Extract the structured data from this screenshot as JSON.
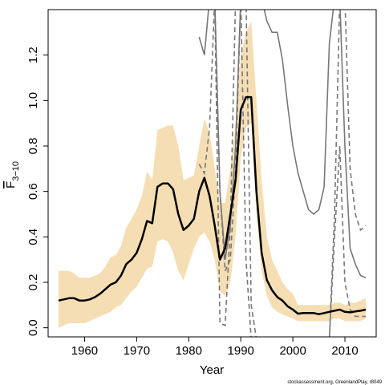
{
  "chart_data": {
    "type": "line",
    "xlabel": "Year",
    "ylabel_main": "F",
    "ylabel_sub": "3−10",
    "footer": "stockassessment.org, GreenlandPlay, r8049",
    "xlim": [
      1953,
      2016
    ],
    "ylim": [
      -0.04,
      1.4
    ],
    "xticks": [
      1960,
      1970,
      1980,
      1990,
      2000,
      2010
    ],
    "xtick_labels": [
      "1960",
      "1970",
      "1980",
      "1990",
      "2000",
      "2010"
    ],
    "yticks": [
      0.0,
      0.2,
      0.4,
      0.6,
      0.8,
      1.0,
      1.2
    ],
    "ytick_labels": [
      "0.0",
      "0.2",
      "0.4",
      "0.6",
      "0.8",
      "1.0",
      "1.2"
    ],
    "colors": {
      "band": "#f5deb3",
      "main_line": "#000000",
      "retro_line": "#777777"
    },
    "band": {
      "years": [
        1955,
        1956,
        1957,
        1958,
        1959,
        1960,
        1961,
        1962,
        1963,
        1964,
        1965,
        1966,
        1967,
        1968,
        1969,
        1970,
        1971,
        1972,
        1973,
        1974,
        1975,
        1976,
        1977,
        1978,
        1979,
        1980,
        1981,
        1982,
        1983,
        1984,
        1985,
        1986,
        1987,
        1988,
        1989,
        1990,
        1991,
        1992,
        1993,
        1994,
        1995,
        1996,
        1997,
        1998,
        1999,
        2000,
        2001,
        2002,
        2003,
        2004,
        2005,
        2006,
        2007,
        2008,
        2009,
        2010,
        2011,
        2012,
        2013,
        2014
      ],
      "upper": [
        0.25,
        0.25,
        0.25,
        0.24,
        0.22,
        0.22,
        0.22,
        0.23,
        0.24,
        0.27,
        0.31,
        0.32,
        0.36,
        0.44,
        0.48,
        0.52,
        0.58,
        0.69,
        0.65,
        0.87,
        0.88,
        0.89,
        0.89,
        0.8,
        0.65,
        0.66,
        0.67,
        0.8,
        0.92,
        0.86,
        0.7,
        0.55,
        0.55,
        0.7,
        0.9,
        1.2,
        1.3,
        1.35,
        1.0,
        0.65,
        0.4,
        0.3,
        0.25,
        0.2,
        0.17,
        0.15,
        0.1,
        0.1,
        0.1,
        0.1,
        0.1,
        0.1,
        0.1,
        0.11,
        0.11,
        0.1,
        0.11,
        0.11,
        0.12,
        0.13
      ],
      "lower": [
        0.0,
        0.01,
        0.02,
        0.02,
        0.02,
        0.02,
        0.03,
        0.04,
        0.05,
        0.06,
        0.07,
        0.09,
        0.1,
        0.13,
        0.16,
        0.18,
        0.22,
        0.26,
        0.27,
        0.38,
        0.39,
        0.38,
        0.33,
        0.25,
        0.21,
        0.28,
        0.35,
        0.4,
        0.42,
        0.38,
        0.3,
        0.16,
        0.14,
        0.2,
        0.4,
        0.75,
        0.88,
        0.9,
        0.5,
        0.25,
        0.14,
        0.09,
        0.07,
        0.06,
        0.05,
        0.04,
        0.03,
        0.03,
        0.03,
        0.03,
        0.03,
        0.03,
        0.03,
        0.04,
        0.04,
        0.03,
        0.03,
        0.03,
        0.03,
        0.04
      ]
    },
    "series": [
      {
        "style": "solid-thick",
        "x": [
          1955,
          1956,
          1957,
          1958,
          1959,
          1960,
          1961,
          1962,
          1963,
          1964,
          1965,
          1966,
          1967,
          1968,
          1969,
          1970,
          1971,
          1972,
          1973,
          1974,
          1975,
          1976,
          1977,
          1978,
          1979,
          1980,
          1981,
          1982,
          1983,
          1984,
          1985,
          1986,
          1987,
          1988,
          1989,
          1990,
          1991,
          1992,
          1993,
          1994,
          1995,
          1996,
          1997,
          1998,
          1999,
          2000,
          2001,
          2002,
          2003,
          2004,
          2005,
          2006,
          2007,
          2008,
          2009,
          2010,
          2011,
          2012,
          2013,
          2014
        ],
        "y": [
          0.12,
          0.125,
          0.13,
          0.13,
          0.12,
          0.12,
          0.125,
          0.135,
          0.15,
          0.17,
          0.19,
          0.2,
          0.23,
          0.28,
          0.3,
          0.33,
          0.39,
          0.47,
          0.46,
          0.62,
          0.635,
          0.635,
          0.61,
          0.5,
          0.43,
          0.45,
          0.48,
          0.6,
          0.66,
          0.58,
          0.45,
          0.3,
          0.35,
          0.5,
          0.65,
          0.96,
          1.015,
          1.015,
          0.6,
          0.33,
          0.21,
          0.165,
          0.135,
          0.12,
          0.095,
          0.08,
          0.062,
          0.065,
          0.065,
          0.065,
          0.06,
          0.065,
          0.07,
          0.075,
          0.08,
          0.07,
          0.068,
          0.072,
          0.075,
          0.08
        ]
      },
      {
        "style": "solid-gray",
        "x": [
          1982,
          1983,
          1984,
          1985,
          1986,
          1987,
          1988,
          1989,
          1990,
          1991,
          1992,
          1993,
          1994,
          1995,
          1996,
          1997,
          1998,
          1999,
          2000,
          2001,
          2002,
          2003,
          2004,
          2005,
          2006,
          2007,
          2008,
          2009,
          2010,
          2011,
          2012,
          2013,
          2014
        ],
        "y": [
          1.28,
          1.2,
          1.45,
          1.45,
          0.6,
          0.3,
          0.45,
          0.8,
          1.45,
          1.45,
          1.45,
          1.45,
          1.45,
          1.35,
          1.3,
          1.3,
          1.18,
          0.98,
          0.8,
          0.68,
          0.6,
          0.52,
          0.5,
          0.52,
          0.62,
          1.25,
          1.45,
          1.45,
          0.8,
          0.35,
          0.28,
          0.23,
          0.22
        ]
      },
      {
        "style": "dashed-gray",
        "x": [
          1982,
          1983,
          1984,
          1985,
          1986,
          1987,
          1988,
          1989,
          1990,
          1991,
          1992
        ],
        "y": [
          0.72,
          0.68,
          0.88,
          1.45,
          0.02,
          0.01,
          0.45,
          1.45,
          1.45,
          0.3,
          -0.05
        ]
      },
      {
        "style": "dashed-gray",
        "x": [
          1985,
          1986,
          1987,
          1988,
          1989,
          1990,
          1991,
          1992,
          1993,
          1994,
          1995,
          1996,
          1997,
          1998,
          1999,
          2000,
          2001,
          2002,
          2003,
          2004,
          2005,
          2006,
          2007,
          2008,
          2009,
          2010,
          2011,
          2012,
          2013,
          2014
        ],
        "y": [
          1.45,
          0.6,
          0.25,
          0.3,
          0.7,
          1.45,
          1.45,
          0.1,
          -0.05,
          -0.05,
          -0.05,
          -0.05,
          -0.05,
          -0.05,
          -0.05,
          -0.05,
          -0.05,
          -0.05,
          -0.05,
          -0.05,
          -0.05,
          -0.05,
          -0.05,
          0.4,
          0.8,
          0.2,
          0.08,
          0.05,
          0.05,
          0.05
        ]
      },
      {
        "style": "dashed-gray",
        "x": [
          2007,
          2008,
          2009,
          2010,
          2011,
          2012,
          2013,
          2014
        ],
        "y": [
          -0.05,
          0.5,
          1.45,
          1.45,
          0.7,
          0.5,
          0.43,
          0.45
        ]
      }
    ]
  }
}
